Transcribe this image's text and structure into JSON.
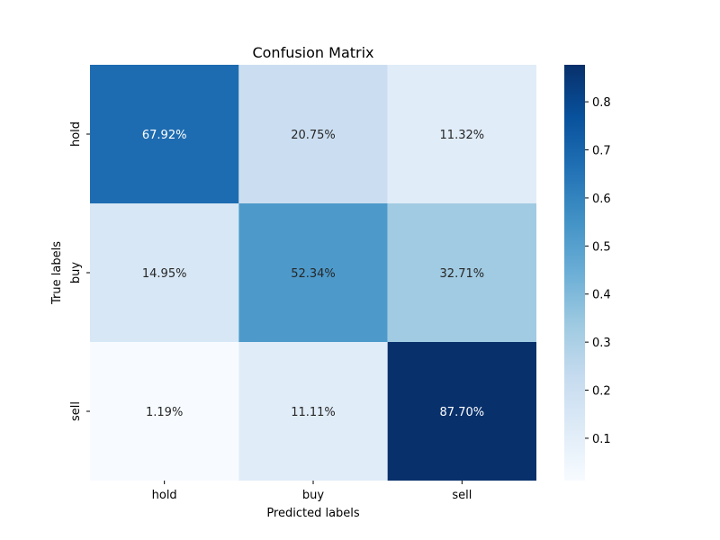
{
  "chart_data": {
    "type": "heatmap",
    "title": "Confusion Matrix",
    "xlabel": "Predicted labels",
    "ylabel": "True labels",
    "x_categories": [
      "hold",
      "buy",
      "sell"
    ],
    "y_categories": [
      "hold",
      "buy",
      "sell"
    ],
    "values": [
      [
        0.6792,
        0.2075,
        0.1132
      ],
      [
        0.1495,
        0.5234,
        0.3271
      ],
      [
        0.0119,
        0.1111,
        0.877
      ]
    ],
    "cell_labels": [
      [
        "67.92%",
        "20.75%",
        "11.32%"
      ],
      [
        "14.95%",
        "52.34%",
        "32.71%"
      ],
      [
        "1.19%",
        "11.11%",
        "87.70%"
      ]
    ],
    "colormap": "Blues",
    "colorbar": {
      "range": [
        0.0119,
        0.877
      ],
      "ticks": [
        0.1,
        0.2,
        0.3,
        0.4,
        0.5,
        0.6,
        0.7,
        0.8
      ],
      "tick_labels": [
        "0.1",
        "0.2",
        "0.3",
        "0.4",
        "0.5",
        "0.6",
        "0.7",
        "0.8"
      ]
    },
    "grid": false
  }
}
